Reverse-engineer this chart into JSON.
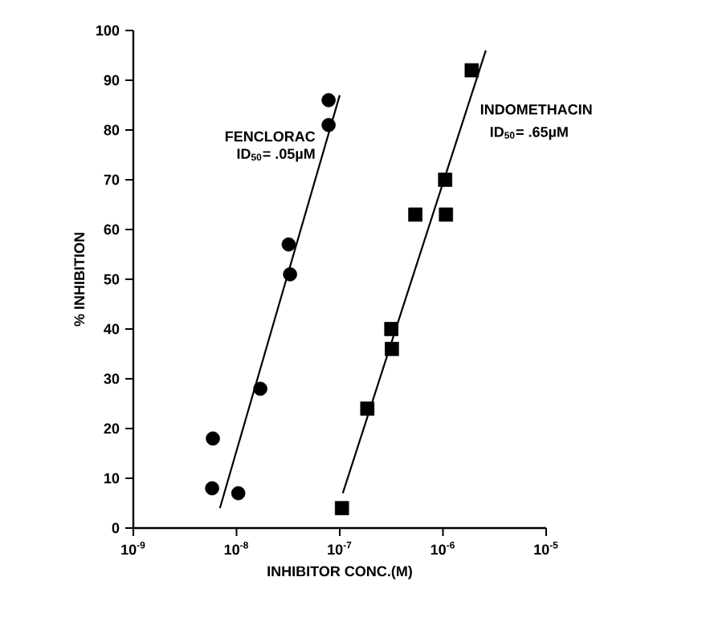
{
  "chart_data": {
    "type": "scatter",
    "xlabel": "INHIBITOR CONC.(M)",
    "ylabel": "% INHIBITION",
    "log": "x",
    "grid": false,
    "xlim": [
      1e-09,
      1e-05
    ],
    "xticks": [
      {
        "value": 1e-09,
        "label": "10$^{-9}$"
      },
      {
        "value": 1e-08,
        "label": "10$^{-8}$"
      },
      {
        "value": 1e-07,
        "label": "10$^{-7}$"
      },
      {
        "value": 1e-06,
        "label": "10$^{-6}$"
      },
      {
        "value": 1e-05,
        "label": "10$^{-5}$"
      }
    ],
    "ylim": [
      0,
      100
    ],
    "yticks": [
      0,
      10,
      20,
      30,
      40,
      50,
      60,
      70,
      80,
      90,
      100
    ],
    "series": [
      {
        "name": "FENCLORAC",
        "color": "#000000",
        "marker": "circle",
        "x": [
          5.9e-09,
          5.8e-09,
          1.04e-08,
          1.7e-08,
          3.3e-08,
          3.2e-08,
          7.8e-08,
          7.8e-08
        ],
        "values": [
          18,
          8,
          7,
          28,
          51,
          57,
          81,
          86
        ]
      },
      {
        "type": "line",
        "color": "#000000",
        "marker": "none",
        "x": [
          6.9e-09,
          1e-07
        ],
        "values": [
          4,
          87
        ]
      },
      {
        "name": "INDOMETHACIN",
        "color": "#000000",
        "marker": "square",
        "x": [
          1.05e-07,
          1.85e-07,
          3.16e-07,
          3.2e-07,
          5.4e-07,
          1.07e-06,
          1.05e-06,
          1.9e-06
        ],
        "values": [
          4,
          24,
          40,
          36,
          63,
          63,
          70,
          92
        ]
      },
      {
        "type": "line",
        "color": "#000000",
        "marker": "none",
        "x": [
          1.07e-07,
          2.6e-06
        ],
        "values": [
          7,
          96
        ]
      }
    ],
    "annotations": [
      "ID$_{50}$= .05µM",
      "ID$_{50}$= .65µM"
    ]
  }
}
